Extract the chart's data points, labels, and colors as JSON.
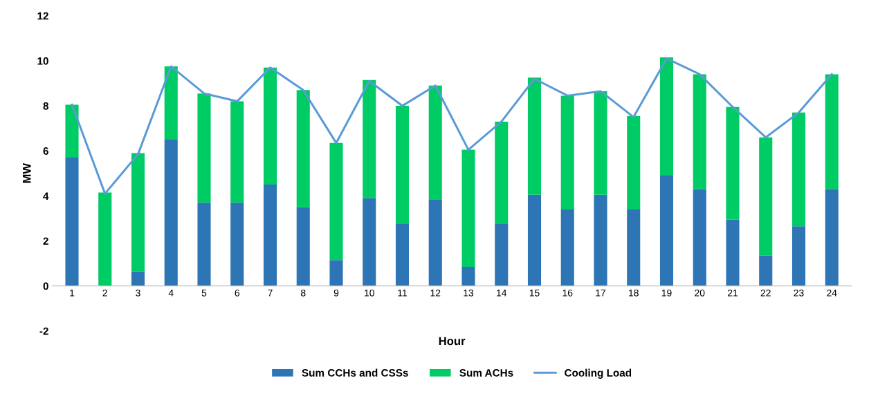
{
  "chart_data": {
    "type": "bar",
    "stacked": true,
    "xlabel": "Hour",
    "ylabel": "MW",
    "categories": [
      "1",
      "2",
      "3",
      "4",
      "5",
      "6",
      "7",
      "8",
      "9",
      "10",
      "11",
      "12",
      "13",
      "14",
      "15",
      "16",
      "17",
      "18",
      "19",
      "20",
      "21",
      "22",
      "23",
      "24"
    ],
    "series": [
      {
        "name": "Sum CCHs and CSSs",
        "color": "#2e75b6",
        "values": [
          5.7,
          0,
          0.65,
          6.5,
          3.7,
          3.7,
          4.5,
          3.5,
          1.15,
          3.9,
          2.75,
          3.85,
          0.85,
          2.75,
          4.05,
          3.4,
          4.05,
          3.4,
          4.9,
          4.3,
          2.95,
          1.35,
          2.65,
          4.3
        ]
      },
      {
        "name": "Sum ACHs",
        "color": "#00cc66",
        "values": [
          2.35,
          4.15,
          5.25,
          3.25,
          4.85,
          4.5,
          5.2,
          5.2,
          5.2,
          5.25,
          5.25,
          5.05,
          5.2,
          4.55,
          5.2,
          5.05,
          4.6,
          4.15,
          5.25,
          5.1,
          5.0,
          5.25,
          5.05,
          5.1
        ]
      },
      {
        "name": "Cooling Load",
        "type": "line",
        "color": "#5b9bd5",
        "values": [
          8.05,
          4.1,
          5.85,
          9.75,
          8.55,
          8.2,
          9.7,
          8.7,
          6.35,
          9.1,
          8.0,
          8.9,
          6.05,
          7.3,
          9.2,
          8.45,
          8.65,
          7.5,
          10.1,
          9.4,
          7.95,
          6.6,
          7.7,
          9.4
        ]
      }
    ],
    "ylim": [
      -2,
      12
    ],
    "yticks": [
      -2,
      0,
      2,
      4,
      6,
      8,
      10,
      12
    ],
    "grid": false,
    "legend": "bottom",
    "marker": "none"
  }
}
